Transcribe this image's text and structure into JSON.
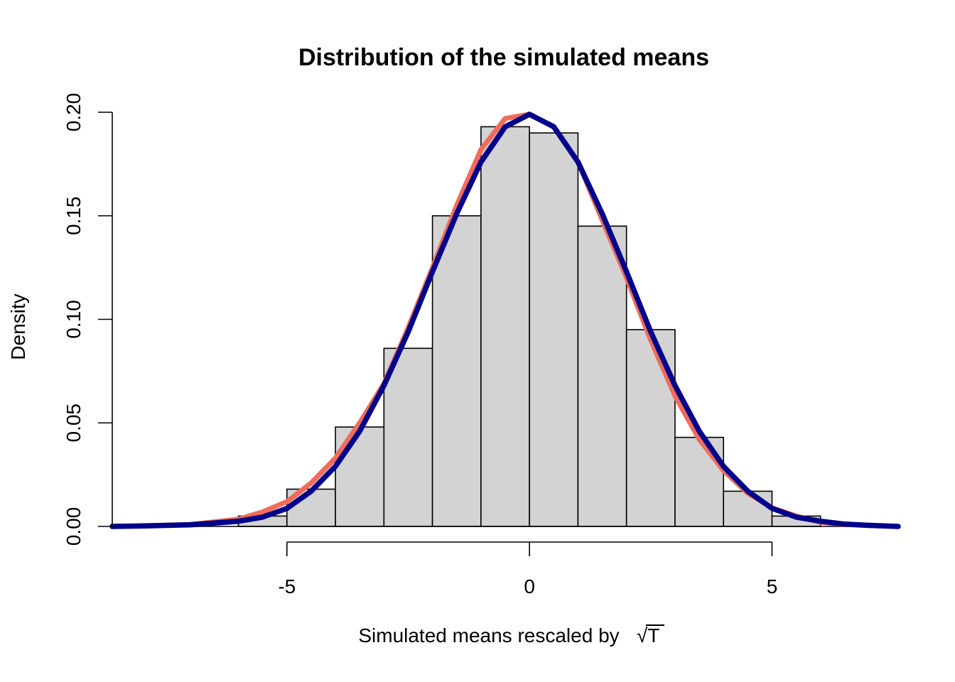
{
  "chart_data": {
    "type": "bar",
    "title": "Distribution of the simulated means",
    "xlabel": "Simulated means rescaled by",
    "xlabel_symbol": "√T",
    "ylabel": "Density",
    "xlim": [
      -8.6,
      7.6
    ],
    "ylim": [
      0,
      0.2
    ],
    "x_ticks": [
      -5,
      0,
      5
    ],
    "x_tick_labels": [
      "-5",
      "0",
      "5"
    ],
    "y_ticks": [
      0.0,
      0.05,
      0.1,
      0.15,
      0.2
    ],
    "y_tick_labels": [
      "0.00",
      "0.05",
      "0.10",
      "0.15",
      "0.20"
    ],
    "grid": false,
    "histogram": {
      "bin_edges": [
        -6,
        -5,
        -4,
        -3,
        -2,
        -1,
        0,
        1,
        2,
        3,
        4,
        5,
        6
      ],
      "density": [
        0.005,
        0.018,
        0.048,
        0.086,
        0.15,
        0.193,
        0.19,
        0.145,
        0.095,
        0.043,
        0.017,
        0.005
      ],
      "fill_color": "#d3d3d3",
      "edge_color": "#000000"
    },
    "series": [
      {
        "style": "curve",
        "color": "#f26b5b",
        "x": [
          -8.6,
          -8,
          -7,
          -6,
          -5.5,
          -5,
          -4.5,
          -4,
          -3.5,
          -3,
          -2.5,
          -2,
          -1.5,
          -1,
          -0.5,
          0,
          0.5,
          1,
          1.5,
          2,
          2.5,
          3,
          3.5,
          4,
          4.5,
          5,
          5.5,
          6,
          6.5,
          7,
          7.6
        ],
        "values": [
          0.0,
          0.0002,
          0.0009,
          0.0035,
          0.007,
          0.012,
          0.021,
          0.033,
          0.05,
          0.069,
          0.096,
          0.125,
          0.155,
          0.182,
          0.197,
          0.199,
          0.193,
          0.176,
          0.148,
          0.12,
          0.09,
          0.063,
          0.042,
          0.027,
          0.016,
          0.009,
          0.005,
          0.002,
          0.001,
          0.0004,
          0.0
        ]
      },
      {
        "style": "curve",
        "color": "#00008b",
        "x": [
          -8.6,
          -8,
          -7,
          -6,
          -5.5,
          -5,
          -4.5,
          -4,
          -3.5,
          -3,
          -2.5,
          -2,
          -1.5,
          -1,
          -0.5,
          0,
          0.5,
          1,
          1.5,
          2,
          2.5,
          3,
          3.5,
          4,
          4.5,
          5,
          5.5,
          6,
          6.5,
          7,
          7.6
        ],
        "values": [
          0.0,
          0.0002,
          0.0008,
          0.0025,
          0.0045,
          0.0087,
          0.017,
          0.029,
          0.046,
          0.068,
          0.094,
          0.123,
          0.151,
          0.176,
          0.193,
          0.199,
          0.193,
          0.176,
          0.151,
          0.123,
          0.094,
          0.068,
          0.046,
          0.029,
          0.017,
          0.0087,
          0.0045,
          0.0025,
          0.0011,
          0.0005,
          0.0
        ]
      }
    ]
  }
}
